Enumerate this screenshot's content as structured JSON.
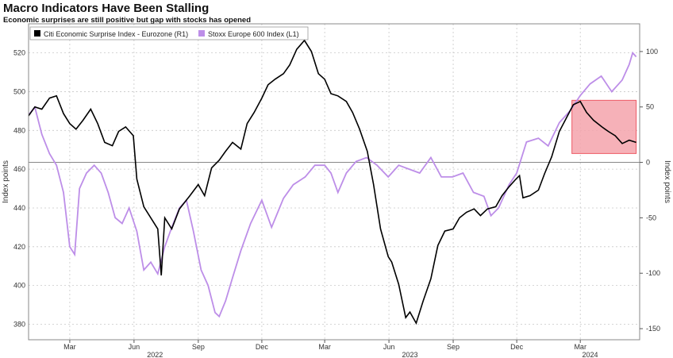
{
  "title": "Macro Indicators Have Been Stalling",
  "subtitle": "Economic surprises are still positive but gap with stocks has opened",
  "colors": {
    "citi": "#000000",
    "stoxx": "#bd8ee8",
    "highlight": "#f4a3ab",
    "highlight_border": "#ee5b66"
  },
  "chart_data": {
    "type": "line",
    "title": "Macro Indicators Have Been Stalling",
    "subtitle": "Economic surprises are still positive but gap with stocks has opened",
    "legend": [
      "Citi Economic Surprise Index - Eurozone (R1)",
      "Stoxx Europe 600 Index (L1)"
    ],
    "legend_position": "top-left",
    "grid": true,
    "x_range": [
      "2022-01-01",
      "2024-05-25"
    ],
    "x_month_ticks": [
      {
        "date": "2022-03-01",
        "label": "Mar"
      },
      {
        "date": "2022-06-01",
        "label": "Jun"
      },
      {
        "date": "2022-09-01",
        "label": "Sep"
      },
      {
        "date": "2022-12-01",
        "label": "Dec"
      },
      {
        "date": "2023-03-01",
        "label": "Mar"
      },
      {
        "date": "2023-06-01",
        "label": "Jun"
      },
      {
        "date": "2023-09-01",
        "label": "Sep"
      },
      {
        "date": "2023-12-01",
        "label": "Dec"
      },
      {
        "date": "2024-03-01",
        "label": "Mar"
      }
    ],
    "x_year_ticks": [
      {
        "date": "2022-07-01",
        "label": "2022"
      },
      {
        "date": "2023-07-01",
        "label": "2023"
      },
      {
        "date": "2024-03-15",
        "label": "2024"
      }
    ],
    "y_left": {
      "label": "Index points",
      "range": [
        372,
        535
      ],
      "ticks": [
        380,
        400,
        420,
        440,
        460,
        480,
        500,
        520
      ]
    },
    "y_right": {
      "label": "Index points",
      "range": [
        -160,
        125
      ],
      "ticks": [
        -150,
        -100,
        -50,
        0,
        50,
        100
      ],
      "zero_line": true
    },
    "highlight": {
      "x_start": "2024-02-18",
      "x_end": "2024-05-20",
      "y_right_start": 8,
      "y_right_end": 56
    },
    "series": [
      {
        "name": "Citi Economic Surprise Index - Eurozone (R1)",
        "axis": "right",
        "points": [
          [
            "2022-01-01",
            42
          ],
          [
            "2022-01-10",
            50
          ],
          [
            "2022-01-20",
            48
          ],
          [
            "2022-01-31",
            58
          ],
          [
            "2022-02-10",
            60
          ],
          [
            "2022-02-20",
            44
          ],
          [
            "2022-03-01",
            35
          ],
          [
            "2022-03-10",
            30
          ],
          [
            "2022-03-20",
            38
          ],
          [
            "2022-03-31",
            48
          ],
          [
            "2022-04-10",
            35
          ],
          [
            "2022-04-20",
            18
          ],
          [
            "2022-05-01",
            15
          ],
          [
            "2022-05-10",
            28
          ],
          [
            "2022-05-20",
            32
          ],
          [
            "2022-05-31",
            24
          ],
          [
            "2022-06-05",
            -15
          ],
          [
            "2022-06-15",
            -40
          ],
          [
            "2022-06-25",
            -50
          ],
          [
            "2022-07-05",
            -60
          ],
          [
            "2022-07-10",
            -102
          ],
          [
            "2022-07-15",
            -50
          ],
          [
            "2022-07-25",
            -60
          ],
          [
            "2022-08-05",
            -42
          ],
          [
            "2022-08-20",
            -30
          ],
          [
            "2022-09-01",
            -20
          ],
          [
            "2022-09-10",
            -30
          ],
          [
            "2022-09-20",
            -5
          ],
          [
            "2022-10-01",
            2
          ],
          [
            "2022-10-10",
            10
          ],
          [
            "2022-10-20",
            18
          ],
          [
            "2022-11-01",
            12
          ],
          [
            "2022-11-10",
            35
          ],
          [
            "2022-11-20",
            45
          ],
          [
            "2022-12-01",
            58
          ],
          [
            "2022-12-10",
            70
          ],
          [
            "2022-12-20",
            75
          ],
          [
            "2023-01-01",
            80
          ],
          [
            "2023-01-10",
            88
          ],
          [
            "2023-01-20",
            102
          ],
          [
            "2023-01-31",
            110
          ],
          [
            "2023-02-10",
            100
          ],
          [
            "2023-02-20",
            80
          ],
          [
            "2023-03-01",
            75
          ],
          [
            "2023-03-10",
            62
          ],
          [
            "2023-03-20",
            60
          ],
          [
            "2023-04-01",
            55
          ],
          [
            "2023-04-10",
            45
          ],
          [
            "2023-04-20",
            30
          ],
          [
            "2023-05-01",
            10
          ],
          [
            "2023-05-10",
            -20
          ],
          [
            "2023-05-20",
            -60
          ],
          [
            "2023-05-31",
            -85
          ],
          [
            "2023-06-05",
            -90
          ],
          [
            "2023-06-15",
            -110
          ],
          [
            "2023-06-25",
            -140
          ],
          [
            "2023-07-01",
            -135
          ],
          [
            "2023-07-10",
            -145
          ],
          [
            "2023-07-20",
            -125
          ],
          [
            "2023-07-31",
            -105
          ],
          [
            "2023-08-10",
            -75
          ],
          [
            "2023-08-20",
            -62
          ],
          [
            "2023-09-01",
            -60
          ],
          [
            "2023-09-10",
            -50
          ],
          [
            "2023-09-20",
            -45
          ],
          [
            "2023-10-01",
            -42
          ],
          [
            "2023-10-10",
            -48
          ],
          [
            "2023-10-20",
            -42
          ],
          [
            "2023-11-01",
            -40
          ],
          [
            "2023-11-10",
            -30
          ],
          [
            "2023-11-20",
            -22
          ],
          [
            "2023-11-30",
            -15
          ],
          [
            "2023-12-05",
            -12
          ],
          [
            "2023-12-10",
            -32
          ],
          [
            "2023-12-20",
            -30
          ],
          [
            "2024-01-01",
            -25
          ],
          [
            "2024-01-10",
            -10
          ],
          [
            "2024-01-20",
            5
          ],
          [
            "2024-01-31",
            28
          ],
          [
            "2024-02-10",
            40
          ],
          [
            "2024-02-20",
            52
          ],
          [
            "2024-03-01",
            55
          ],
          [
            "2024-03-10",
            45
          ],
          [
            "2024-03-20",
            38
          ],
          [
            "2024-04-01",
            32
          ],
          [
            "2024-04-10",
            28
          ],
          [
            "2024-04-20",
            24
          ],
          [
            "2024-04-30",
            17
          ],
          [
            "2024-05-10",
            20
          ],
          [
            "2024-05-20",
            18
          ]
        ]
      },
      {
        "name": "Stoxx Europe 600 Index (L1)",
        "axis": "left",
        "points": [
          [
            "2022-01-01",
            488
          ],
          [
            "2022-01-10",
            492
          ],
          [
            "2022-01-20",
            478
          ],
          [
            "2022-01-31",
            468
          ],
          [
            "2022-02-10",
            462
          ],
          [
            "2022-02-20",
            448
          ],
          [
            "2022-03-01",
            420
          ],
          [
            "2022-03-08",
            416
          ],
          [
            "2022-03-15",
            450
          ],
          [
            "2022-03-25",
            458
          ],
          [
            "2022-04-05",
            462
          ],
          [
            "2022-04-15",
            458
          ],
          [
            "2022-04-25",
            448
          ],
          [
            "2022-05-05",
            435
          ],
          [
            "2022-05-15",
            432
          ],
          [
            "2022-05-25",
            440
          ],
          [
            "2022-06-05",
            428
          ],
          [
            "2022-06-15",
            408
          ],
          [
            "2022-06-25",
            412
          ],
          [
            "2022-07-05",
            406
          ],
          [
            "2022-07-15",
            420
          ],
          [
            "2022-07-25",
            430
          ],
          [
            "2022-08-05",
            440
          ],
          [
            "2022-08-15",
            444
          ],
          [
            "2022-08-25",
            428
          ],
          [
            "2022-09-05",
            408
          ],
          [
            "2022-09-15",
            400
          ],
          [
            "2022-09-25",
            386
          ],
          [
            "2022-10-01",
            384
          ],
          [
            "2022-10-10",
            392
          ],
          [
            "2022-10-20",
            404
          ],
          [
            "2022-11-01",
            418
          ],
          [
            "2022-11-15",
            432
          ],
          [
            "2022-12-01",
            444
          ],
          [
            "2022-12-15",
            430
          ],
          [
            "2023-01-01",
            445
          ],
          [
            "2023-01-15",
            452
          ],
          [
            "2023-02-01",
            456
          ],
          [
            "2023-02-15",
            462
          ],
          [
            "2023-03-01",
            462
          ],
          [
            "2023-03-10",
            458
          ],
          [
            "2023-03-20",
            448
          ],
          [
            "2023-04-01",
            458
          ],
          [
            "2023-04-15",
            464
          ],
          [
            "2023-04-30",
            466
          ],
          [
            "2023-05-15",
            462
          ],
          [
            "2023-05-31",
            456
          ],
          [
            "2023-06-15",
            462
          ],
          [
            "2023-06-30",
            460
          ],
          [
            "2023-07-15",
            458
          ],
          [
            "2023-07-31",
            466
          ],
          [
            "2023-08-15",
            456
          ],
          [
            "2023-08-31",
            456
          ],
          [
            "2023-09-15",
            458
          ],
          [
            "2023-09-30",
            448
          ],
          [
            "2023-10-15",
            446
          ],
          [
            "2023-10-25",
            436
          ],
          [
            "2023-11-05",
            440
          ],
          [
            "2023-11-20",
            452
          ],
          [
            "2023-12-01",
            458
          ],
          [
            "2023-12-15",
            474
          ],
          [
            "2024-01-01",
            476
          ],
          [
            "2024-01-15",
            472
          ],
          [
            "2024-01-31",
            484
          ],
          [
            "2024-02-15",
            490
          ],
          [
            "2024-03-01",
            498
          ],
          [
            "2024-03-15",
            504
          ],
          [
            "2024-03-31",
            508
          ],
          [
            "2024-04-15",
            500
          ],
          [
            "2024-04-30",
            506
          ],
          [
            "2024-05-10",
            514
          ],
          [
            "2024-05-15",
            520
          ],
          [
            "2024-05-20",
            518
          ]
        ]
      }
    ]
  }
}
